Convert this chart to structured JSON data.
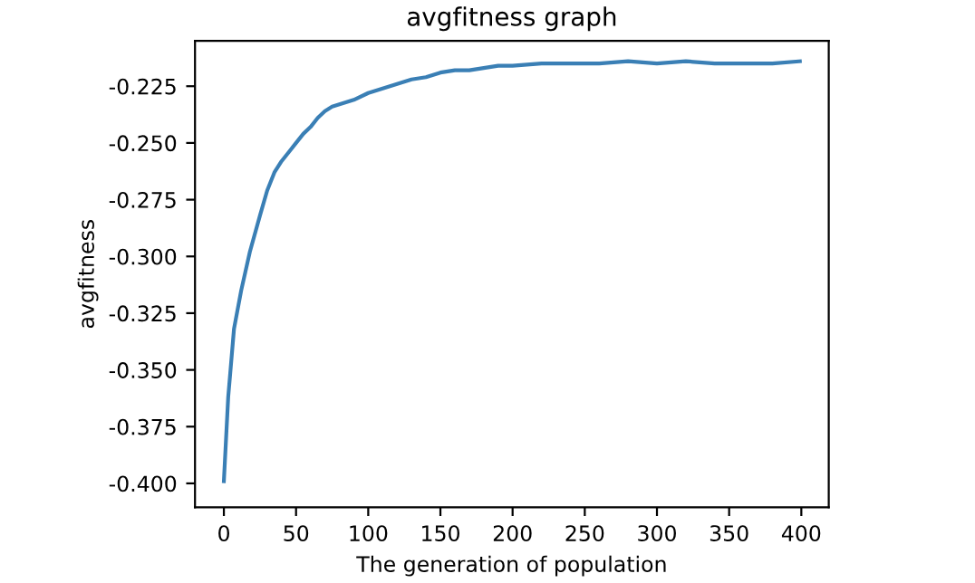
{
  "chart_data": {
    "type": "line",
    "title": "avgfitness graph",
    "xlabel": "The generation of population",
    "ylabel": "avgfitness",
    "series": [
      {
        "color": "#3a7fb5",
        "x": [
          0,
          3,
          7,
          12,
          18,
          25,
          30,
          35,
          40,
          45,
          50,
          55,
          60,
          65,
          70,
          75,
          80,
          90,
          100,
          110,
          120,
          130,
          140,
          150,
          160,
          170,
          180,
          190,
          200,
          220,
          240,
          260,
          280,
          300,
          320,
          340,
          360,
          380,
          399
        ],
        "values": [
          -0.399,
          -0.362,
          -0.332,
          -0.315,
          -0.298,
          -0.282,
          -0.271,
          -0.263,
          -0.258,
          -0.254,
          -0.25,
          -0.246,
          -0.243,
          -0.239,
          -0.236,
          -0.234,
          -0.233,
          -0.231,
          -0.228,
          -0.226,
          -0.224,
          -0.222,
          -0.221,
          -0.219,
          -0.218,
          -0.218,
          -0.217,
          -0.216,
          -0.216,
          -0.215,
          -0.215,
          -0.215,
          -0.214,
          -0.215,
          -0.214,
          -0.215,
          -0.215,
          -0.215,
          -0.214
        ]
      }
    ],
    "xlim": [
      -20,
      419
    ],
    "ylim": [
      -0.4105,
      -0.205
    ],
    "xticks": [
      0,
      50,
      100,
      150,
      200,
      250,
      300,
      350,
      400
    ],
    "yticks": [
      {
        "value": -0.4,
        "label": "-0.400"
      },
      {
        "value": -0.375,
        "label": "-0.375"
      },
      {
        "value": -0.35,
        "label": "-0.350"
      },
      {
        "value": -0.325,
        "label": "-0.325"
      },
      {
        "value": -0.3,
        "label": "-0.300"
      },
      {
        "value": -0.275,
        "label": "-0.275"
      },
      {
        "value": -0.25,
        "label": "-0.250"
      },
      {
        "value": -0.225,
        "label": "-0.225"
      }
    ],
    "grid": false,
    "legend": false
  }
}
